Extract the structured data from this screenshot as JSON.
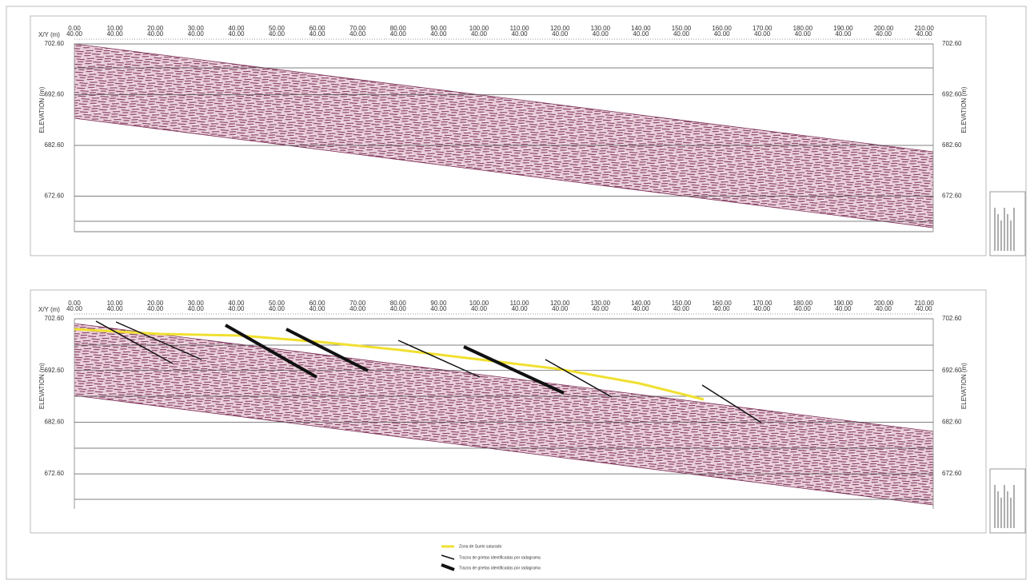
{
  "panels": [
    {
      "x_axis_label": "X/Y (m)",
      "x_labels": [
        "0.00",
        "10.00",
        "20.00",
        "30.00",
        "40.00",
        "50.00",
        "60.00",
        "70.00",
        "80.00",
        "90.00",
        "100.00",
        "110.00",
        "120.00",
        "130.00",
        "140.00",
        "150.00",
        "160.00",
        "170.00",
        "180.00",
        "190.00",
        "200.00",
        "210.00"
      ],
      "y_labels": [
        "40.00"
      ],
      "elevation_labels": [
        "702.60",
        "692.60",
        "682.60",
        "672.60"
      ],
      "y_axis_title": "ELEVATION (m)"
    },
    {
      "x_axis_label": "X/Y (m)",
      "x_labels": [
        "0.00",
        "10.00",
        "20.00",
        "30.00",
        "40.00",
        "50.00",
        "60.00",
        "70.00",
        "80.00",
        "90.00",
        "100.00",
        "110.00",
        "120.00",
        "130.00",
        "140.00",
        "150.00",
        "160.00",
        "170.00",
        "180.00",
        "190.00",
        "200.00",
        "210.00"
      ],
      "y_labels": [
        "40.00"
      ],
      "elevation_labels": [
        "702.60",
        "692.60",
        "682.60",
        "672.60"
      ],
      "y_axis_title": "ELEVATION (m)"
    }
  ],
  "legend": [
    "Zona de Suelo saturado",
    "Trazos de grietas identificadas por radagrama",
    "Trazos de grietas identificadas por radagrama"
  ]
}
